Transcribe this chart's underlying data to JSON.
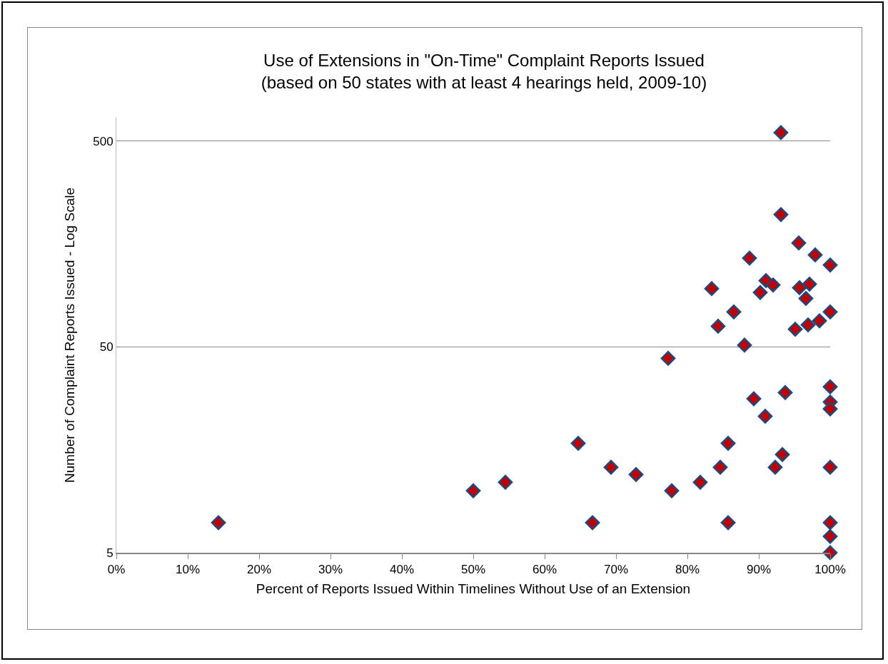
{
  "chart_data": {
    "type": "scatter",
    "title": "Use of Extensions in \"On-Time\" Complaint Reports Issued\n(based on 50 states with at least 4 hearings held, 2009-10)",
    "xlabel": "Percent of Reports Issued Within Timelines Without Use of an Extension",
    "ylabel": "Number of Complaint Reports Issued - Log Scale",
    "log": "y",
    "grid": "y",
    "marker": "diamond",
    "legend": false,
    "xlim": [
      0,
      100
    ],
    "xticks": [
      {
        "value": 0,
        "label": "0%"
      },
      {
        "value": 10,
        "label": "10%"
      },
      {
        "value": 20,
        "label": "20%"
      },
      {
        "value": 30,
        "label": "30%"
      },
      {
        "value": 40,
        "label": "40%"
      },
      {
        "value": 50,
        "label": "50%"
      },
      {
        "value": 60,
        "label": "60%"
      },
      {
        "value": 70,
        "label": "70%"
      },
      {
        "value": 80,
        "label": "80%"
      },
      {
        "value": 90,
        "label": "90%"
      },
      {
        "value": 100,
        "label": "100%"
      }
    ],
    "ylim": [
      5,
      650
    ],
    "yticks": [
      5,
      50,
      500
    ],
    "series": [
      {
        "color": "#c00000",
        "x": [
          14.3,
          50,
          54.5,
          64.7,
          66.7,
          69.3,
          72.8,
          77.3,
          77.8,
          81.8,
          84.6,
          85.7,
          85.7,
          88,
          89.3,
          90.9,
          92.3,
          93.3,
          93.7,
          100,
          100,
          100,
          100,
          100,
          100,
          100,
          93.1,
          93.1,
          95.6,
          97.9,
          100,
          88.7,
          91,
          92,
          83.4,
          90.2,
          95.7,
          97.1,
          96.6,
          100,
          98.5,
          96.9,
          95.1,
          86.5,
          84.3
        ],
        "values": [
          7,
          10,
          11,
          17,
          7,
          13,
          12,
          44,
          10,
          11,
          13,
          17,
          7,
          51,
          28,
          23,
          13,
          15,
          30,
          32,
          27,
          25,
          13,
          7,
          6,
          5,
          550,
          220,
          160,
          140,
          125,
          135,
          105,
          100,
          96,
          92,
          97,
          101,
          86,
          74,
          67,
          64,
          61,
          74,
          63
        ]
      }
    ]
  }
}
